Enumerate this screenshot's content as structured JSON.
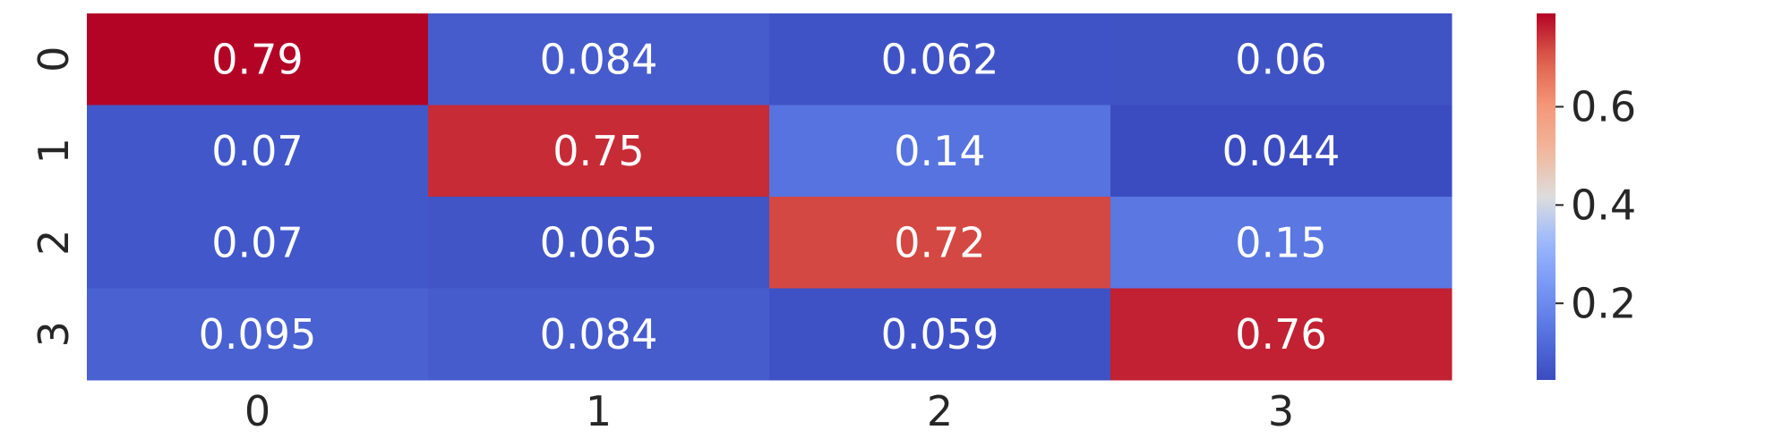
{
  "chart_data": {
    "type": "heatmap",
    "title": "",
    "xlabel": "",
    "ylabel": "",
    "x_categories": [
      "0",
      "1",
      "2",
      "3"
    ],
    "y_categories": [
      "0",
      "1",
      "2",
      "3"
    ],
    "values": [
      [
        0.79,
        0.084,
        0.062,
        0.06
      ],
      [
        0.07,
        0.75,
        0.14,
        0.044
      ],
      [
        0.07,
        0.065,
        0.72,
        0.15
      ],
      [
        0.095,
        0.084,
        0.059,
        0.76
      ]
    ],
    "cell_labels": [
      [
        "0.79",
        "0.084",
        "0.062",
        "0.06"
      ],
      [
        "0.07",
        "0.75",
        "0.14",
        "0.044"
      ],
      [
        "0.07",
        "0.065",
        "0.72",
        "0.15"
      ],
      [
        "0.095",
        "0.084",
        "0.059",
        "0.76"
      ]
    ],
    "colormap": "coolwarm",
    "colorbar": {
      "range": [
        0.044,
        0.79
      ],
      "ticks": [
        0.2,
        0.4,
        0.6
      ],
      "tick_labels": [
        "0.2",
        "0.4",
        "0.6"
      ],
      "placement": "right"
    },
    "grid": false
  }
}
